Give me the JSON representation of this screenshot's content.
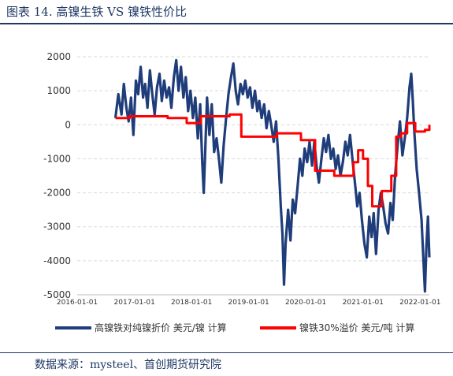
{
  "header": {
    "title": "图表 14. 高镍生铁 VS 镍铁性价比"
  },
  "footer": {
    "source": "数据来源：mysteel、首创期货研究院"
  },
  "chart_data": {
    "type": "line",
    "title": "图表 14. 高镍生铁 VS 镍铁性价比",
    "xlabel": "",
    "ylabel": "",
    "ylim": [
      -5000,
      2000
    ],
    "yticks": [
      2000,
      1000,
      0,
      -1000,
      -2000,
      -3000,
      -4000,
      -5000
    ],
    "xticks": [
      "2016-01-01",
      "2017-01-01",
      "2018-01-01",
      "2019-01-01",
      "2020-01-01",
      "2021-01-01",
      "2022-01-01"
    ],
    "grid": true,
    "legend": "bottom",
    "series": [
      {
        "name": "高镍铁对纯镍折价 美元/镍 计算",
        "color": "#1f3d7a",
        "points": [
          [
            "2016-09-01",
            200
          ],
          [
            "2016-09-20",
            900
          ],
          [
            "2016-10-10",
            300
          ],
          [
            "2016-10-25",
            1200
          ],
          [
            "2016-11-10",
            500
          ],
          [
            "2016-11-25",
            100
          ],
          [
            "2016-12-10",
            800
          ],
          [
            "2016-12-25",
            -300
          ],
          [
            "2017-01-10",
            1300
          ],
          [
            "2017-01-25",
            900
          ],
          [
            "2017-02-10",
            1700
          ],
          [
            "2017-02-25",
            800
          ],
          [
            "2017-03-10",
            1200
          ],
          [
            "2017-03-25",
            500
          ],
          [
            "2017-04-10",
            1600
          ],
          [
            "2017-04-25",
            900
          ],
          [
            "2017-05-10",
            300
          ],
          [
            "2017-05-25",
            1100
          ],
          [
            "2017-06-10",
            1500
          ],
          [
            "2017-06-25",
            700
          ],
          [
            "2017-07-10",
            1300
          ],
          [
            "2017-07-25",
            800
          ],
          [
            "2017-08-10",
            1100
          ],
          [
            "2017-08-25",
            500
          ],
          [
            "2017-09-10",
            1400
          ],
          [
            "2017-09-25",
            1900
          ],
          [
            "2017-10-10",
            1000
          ],
          [
            "2017-10-25",
            1700
          ],
          [
            "2017-11-10",
            800
          ],
          [
            "2017-11-25",
            1400
          ],
          [
            "2017-12-10",
            400
          ],
          [
            "2017-12-25",
            1000
          ],
          [
            "2018-01-10",
            200
          ],
          [
            "2018-01-25",
            800
          ],
          [
            "2018-02-10",
            -400
          ],
          [
            "2018-02-25",
            600
          ],
          [
            "2018-03-10",
            -1100
          ],
          [
            "2018-03-20",
            -2000
          ],
          [
            "2018-03-30",
            -700
          ],
          [
            "2018-04-10",
            800
          ],
          [
            "2018-04-25",
            -300
          ],
          [
            "2018-05-10",
            600
          ],
          [
            "2018-05-25",
            -800
          ],
          [
            "2018-06-10",
            -400
          ],
          [
            "2018-06-25",
            -1000
          ],
          [
            "2018-07-10",
            -1700
          ],
          [
            "2018-07-25",
            -600
          ],
          [
            "2018-08-10",
            200
          ],
          [
            "2018-08-25",
            900
          ],
          [
            "2018-09-10",
            1400
          ],
          [
            "2018-09-25",
            1800
          ],
          [
            "2018-10-10",
            1000
          ],
          [
            "2018-10-25",
            600
          ],
          [
            "2018-11-10",
            1200
          ],
          [
            "2018-11-25",
            900
          ],
          [
            "2018-12-10",
            1300
          ],
          [
            "2018-12-25",
            800
          ],
          [
            "2019-01-10",
            1100
          ],
          [
            "2019-01-25",
            500
          ],
          [
            "2019-02-10",
            1000
          ],
          [
            "2019-02-25",
            400
          ],
          [
            "2019-03-10",
            700
          ],
          [
            "2019-03-25",
            200
          ],
          [
            "2019-04-10",
            600
          ],
          [
            "2019-04-25",
            -100
          ],
          [
            "2019-05-10",
            400
          ],
          [
            "2019-05-25",
            0
          ],
          [
            "2019-06-10",
            -500
          ],
          [
            "2019-06-25",
            100
          ],
          [
            "2019-07-10",
            -1000
          ],
          [
            "2019-07-25",
            -2400
          ],
          [
            "2019-08-05",
            -3200
          ],
          [
            "2019-08-15",
            -4700
          ],
          [
            "2019-08-25",
            -3500
          ],
          [
            "2019-09-10",
            -2500
          ],
          [
            "2019-09-25",
            -3400
          ],
          [
            "2019-10-10",
            -2200
          ],
          [
            "2019-10-25",
            -2600
          ],
          [
            "2019-11-10",
            -1800
          ],
          [
            "2019-11-25",
            -1000
          ],
          [
            "2019-12-10",
            -1500
          ],
          [
            "2019-12-25",
            -700
          ],
          [
            "2020-01-10",
            -1100
          ],
          [
            "2020-01-25",
            -500
          ],
          [
            "2020-02-10",
            -1200
          ],
          [
            "2020-02-25",
            -500
          ],
          [
            "2020-03-10",
            -1200
          ],
          [
            "2020-03-25",
            -1700
          ],
          [
            "2020-04-10",
            -1000
          ],
          [
            "2020-04-25",
            -400
          ],
          [
            "2020-05-10",
            -800
          ],
          [
            "2020-05-25",
            -300
          ],
          [
            "2020-06-10",
            -1000
          ],
          [
            "2020-06-25",
            -700
          ],
          [
            "2020-07-10",
            -1300
          ],
          [
            "2020-07-25",
            -900
          ],
          [
            "2020-08-10",
            -1500
          ],
          [
            "2020-08-25",
            -1100
          ],
          [
            "2020-09-10",
            -500
          ],
          [
            "2020-09-25",
            -900
          ],
          [
            "2020-10-10",
            -300
          ],
          [
            "2020-10-25",
            -1000
          ],
          [
            "2020-11-10",
            -1700
          ],
          [
            "2020-11-25",
            -2400
          ],
          [
            "2020-12-10",
            -2000
          ],
          [
            "2020-12-25",
            -2800
          ],
          [
            "2021-01-10",
            -3500
          ],
          [
            "2021-01-25",
            -3900
          ],
          [
            "2021-02-10",
            -2700
          ],
          [
            "2021-02-25",
            -3300
          ],
          [
            "2021-03-10",
            -2600
          ],
          [
            "2021-03-25",
            -3800
          ],
          [
            "2021-04-10",
            -2500
          ],
          [
            "2021-04-25",
            -2000
          ],
          [
            "2021-05-10",
            -2400
          ],
          [
            "2021-05-25",
            -2900
          ],
          [
            "2021-06-10",
            -3200
          ],
          [
            "2021-06-25",
            -2300
          ],
          [
            "2021-07-10",
            -2800
          ],
          [
            "2021-07-25",
            -1500
          ],
          [
            "2021-08-10",
            -600
          ],
          [
            "2021-08-25",
            100
          ],
          [
            "2021-09-10",
            -900
          ],
          [
            "2021-09-25",
            -400
          ],
          [
            "2021-10-10",
            200
          ],
          [
            "2021-10-25",
            1100
          ],
          [
            "2021-11-05",
            1500
          ],
          [
            "2021-11-15",
            700
          ],
          [
            "2021-11-25",
            -200
          ],
          [
            "2021-12-10",
            -1300
          ],
          [
            "2021-12-25",
            -2000
          ],
          [
            "2022-01-10",
            -2800
          ],
          [
            "2022-01-20",
            -3800
          ],
          [
            "2022-02-01",
            -4900
          ],
          [
            "2022-02-10",
            -3600
          ],
          [
            "2022-02-20",
            -2700
          ],
          [
            "2022-03-01",
            -3900
          ]
        ]
      },
      {
        "name": "镍铁30%溢价 美元/吨 计算",
        "color": "#ff0000",
        "points": [
          [
            "2016-09-01",
            200
          ],
          [
            "2016-12-01",
            200
          ],
          [
            "2016-12-01",
            250
          ],
          [
            "2017-08-01",
            250
          ],
          [
            "2017-08-01",
            200
          ],
          [
            "2017-12-01",
            200
          ],
          [
            "2017-12-01",
            50
          ],
          [
            "2018-03-01",
            50
          ],
          [
            "2018-03-01",
            250
          ],
          [
            "2018-09-01",
            250
          ],
          [
            "2018-09-01",
            300
          ],
          [
            "2018-11-15",
            300
          ],
          [
            "2018-11-15",
            -350
          ],
          [
            "2019-07-01",
            -350
          ],
          [
            "2019-07-01",
            -250
          ],
          [
            "2019-12-01",
            -250
          ],
          [
            "2019-12-01",
            -450
          ],
          [
            "2020-03-01",
            -450
          ],
          [
            "2020-03-01",
            -1350
          ],
          [
            "2020-07-01",
            -1350
          ],
          [
            "2020-07-01",
            -1500
          ],
          [
            "2020-11-01",
            -1500
          ],
          [
            "2020-11-01",
            -1100
          ],
          [
            "2020-12-01",
            -1100
          ],
          [
            "2020-12-01",
            -750
          ],
          [
            "2021-01-01",
            -750
          ],
          [
            "2021-01-01",
            -1000
          ],
          [
            "2021-02-01",
            -1000
          ],
          [
            "2021-02-01",
            -1800
          ],
          [
            "2021-03-01",
            -1800
          ],
          [
            "2021-03-01",
            -2400
          ],
          [
            "2021-05-01",
            -2400
          ],
          [
            "2021-05-01",
            -1950
          ],
          [
            "2021-07-01",
            -1950
          ],
          [
            "2021-07-01",
            -1500
          ],
          [
            "2021-08-01",
            -1500
          ],
          [
            "2021-08-01",
            -350
          ],
          [
            "2021-09-01",
            -350
          ],
          [
            "2021-09-01",
            -250
          ],
          [
            "2021-10-10",
            -250
          ],
          [
            "2021-10-10",
            50
          ],
          [
            "2021-12-01",
            50
          ],
          [
            "2021-12-01",
            -200
          ],
          [
            "2022-02-01",
            -200
          ],
          [
            "2022-02-01",
            -150
          ],
          [
            "2022-03-01",
            -150
          ],
          [
            "2022-03-01",
            0
          ]
        ]
      }
    ]
  }
}
